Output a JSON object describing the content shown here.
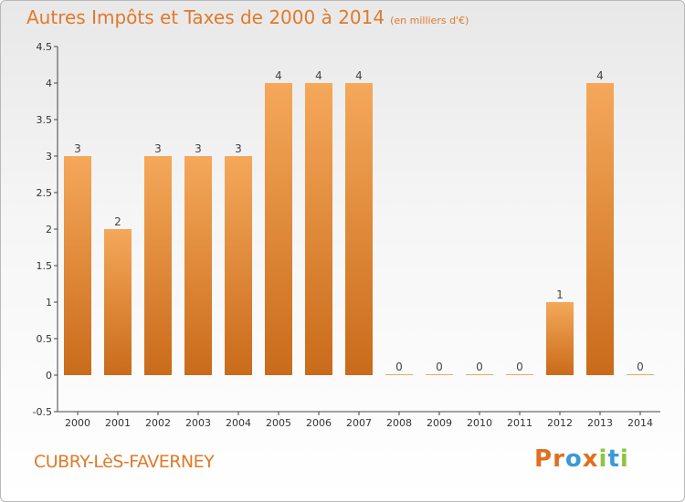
{
  "header": {
    "title": "Autres Impôts et Taxes de 2000 à 2014",
    "unit": "(en milliers d'€)"
  },
  "footer": {
    "commune": "CUBRY-LèS-FAVERNEY",
    "logo_letters": [
      "P",
      "r",
      "o",
      "x",
      "i",
      "t",
      "i"
    ]
  },
  "colors": {
    "title": "#e07a2a",
    "bar_light": "#f5a85a",
    "bar_dark": "#c96b1a",
    "logo": [
      "#e0701e",
      "#e0701e",
      "#3a9ad9",
      "#e0701e",
      "#8cc63f",
      "#3a9ad9",
      "#8cc63f"
    ]
  },
  "chart_data": {
    "type": "bar",
    "categories": [
      "2000",
      "2001",
      "2002",
      "2003",
      "2004",
      "2005",
      "2006",
      "2007",
      "2008",
      "2009",
      "2010",
      "2011",
      "2012",
      "2013",
      "2014"
    ],
    "values": [
      3,
      2,
      3,
      3,
      3,
      4,
      4,
      4,
      0,
      0,
      0,
      0,
      1,
      4,
      0
    ],
    "data_labels": [
      "3",
      "2",
      "3",
      "3",
      "3",
      "4",
      "4",
      "4",
      "0",
      "0",
      "0",
      "0",
      "1",
      "4",
      "0"
    ],
    "y_ticks": [
      -0.5,
      0,
      0.5,
      1,
      1.5,
      2,
      2.5,
      3,
      3.5,
      4,
      4.5
    ],
    "y_tick_labels": [
      "-0.5",
      "0",
      "0.5",
      "1",
      "1.5",
      "2",
      "2.5",
      "3",
      "3.5",
      "4",
      "4.5"
    ],
    "ylim": [
      -0.5,
      4.5
    ],
    "grid": false
  }
}
